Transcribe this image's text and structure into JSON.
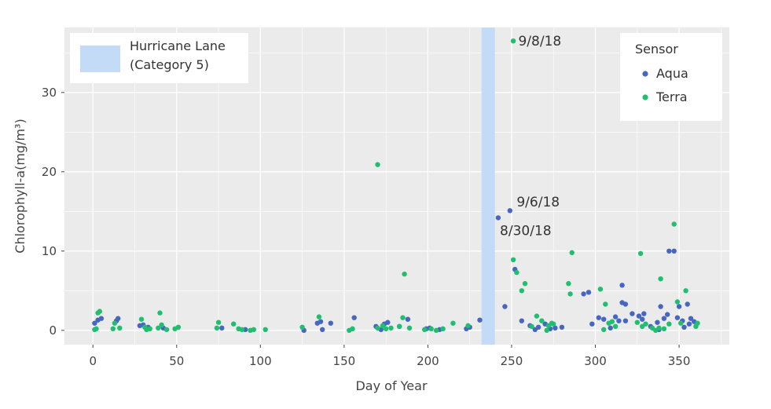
{
  "chart_data": {
    "type": "scatter",
    "xlabel": "Day of Year",
    "ylabel": "Chlorophyll-a(mg/m³)",
    "xlim": [
      -17,
      380
    ],
    "ylim": [
      -1.8,
      38.2
    ],
    "xticks": [
      0,
      50,
      100,
      150,
      200,
      250,
      300,
      350
    ],
    "yticks": [
      0,
      10,
      20,
      30
    ],
    "grid": true,
    "hurricane": {
      "label_line1": "Hurricane Lane",
      "label_line2": "(Category 5)",
      "x_start": 232,
      "x_end": 240,
      "color": "#c3dbf6"
    },
    "legend": {
      "title": "Sensor",
      "placement": "top-right"
    },
    "series": [
      {
        "name": "Aqua",
        "color": "#4766c0",
        "points": [
          [
            1,
            0.9
          ],
          [
            3,
            1.3
          ],
          [
            5,
            1.5
          ],
          [
            14,
            1.2
          ],
          [
            15,
            1.5
          ],
          [
            28,
            0.6
          ],
          [
            30,
            0.7
          ],
          [
            33,
            0.4
          ],
          [
            42,
            0.3
          ],
          [
            77,
            0.3
          ],
          [
            91,
            0.1
          ],
          [
            126,
            0.0
          ],
          [
            134,
            0.9
          ],
          [
            136,
            1.1
          ],
          [
            137,
            0.1
          ],
          [
            142,
            0.9
          ],
          [
            156,
            1.6
          ],
          [
            169,
            0.5
          ],
          [
            172,
            0.1
          ],
          [
            174,
            0.8
          ],
          [
            176,
            1.0
          ],
          [
            183,
            0.5
          ],
          [
            188,
            1.4
          ],
          [
            199,
            0.2
          ],
          [
            201,
            0.3
          ],
          [
            207,
            0.1
          ],
          [
            223,
            0.2
          ],
          [
            225,
            0.4
          ],
          [
            231,
            1.3
          ],
          [
            242,
            14.2
          ],
          [
            246,
            3.0
          ],
          [
            249,
            15.1
          ],
          [
            252,
            7.7
          ],
          [
            256,
            1.2
          ],
          [
            261,
            0.6
          ],
          [
            264,
            0.1
          ],
          [
            266,
            0.4
          ],
          [
            270,
            0.8
          ],
          [
            273,
            0.2
          ],
          [
            276,
            0.3
          ],
          [
            280,
            0.4
          ],
          [
            293,
            4.6
          ],
          [
            296,
            4.8
          ],
          [
            298,
            0.8
          ],
          [
            302,
            1.6
          ],
          [
            305,
            1.4
          ],
          [
            309,
            0.3
          ],
          [
            312,
            1.7
          ],
          [
            314,
            1.2
          ],
          [
            316,
            5.7
          ],
          [
            316,
            3.5
          ],
          [
            318,
            3.3
          ],
          [
            318,
            1.2
          ],
          [
            322,
            2.1
          ],
          [
            326,
            1.8
          ],
          [
            328,
            1.4
          ],
          [
            329,
            2.1
          ],
          [
            333,
            0.5
          ],
          [
            337,
            1.0
          ],
          [
            338,
            0.1
          ],
          [
            339,
            3.0
          ],
          [
            341,
            1.5
          ],
          [
            343,
            2.0
          ],
          [
            344,
            10.0
          ],
          [
            347,
            10.0
          ],
          [
            349,
            1.6
          ],
          [
            350,
            3.0
          ],
          [
            352,
            1.2
          ],
          [
            353,
            0.4
          ],
          [
            355,
            3.3
          ],
          [
            356,
            0.8
          ],
          [
            357,
            1.5
          ],
          [
            359,
            1.1
          ]
        ]
      },
      {
        "name": "Terra",
        "color": "#1fbf6f",
        "points": [
          [
            1,
            0.1
          ],
          [
            2,
            0.2
          ],
          [
            3,
            2.2
          ],
          [
            4,
            2.4
          ],
          [
            12,
            0.2
          ],
          [
            13,
            0.9
          ],
          [
            16,
            0.3
          ],
          [
            29,
            1.4
          ],
          [
            31,
            0.4
          ],
          [
            32,
            0.1
          ],
          [
            34,
            0.2
          ],
          [
            39,
            0.3
          ],
          [
            40,
            2.2
          ],
          [
            41,
            0.7
          ],
          [
            44,
            0.1
          ],
          [
            49,
            0.2
          ],
          [
            51,
            0.4
          ],
          [
            74,
            0.3
          ],
          [
            75,
            1.0
          ],
          [
            84,
            0.8
          ],
          [
            87,
            0.2
          ],
          [
            89,
            0.1
          ],
          [
            94,
            0.0
          ],
          [
            96,
            0.1
          ],
          [
            103,
            0.1
          ],
          [
            125,
            0.4
          ],
          [
            135,
            1.7
          ],
          [
            153,
            0.0
          ],
          [
            155,
            0.2
          ],
          [
            170,
            0.3
          ],
          [
            170,
            20.9
          ],
          [
            173,
            0.6
          ],
          [
            175,
            0.2
          ],
          [
            178,
            0.3
          ],
          [
            183,
            0.5
          ],
          [
            185,
            1.6
          ],
          [
            186,
            7.1
          ],
          [
            189,
            0.3
          ],
          [
            198,
            0.1
          ],
          [
            202,
            0.2
          ],
          [
            205,
            0.0
          ],
          [
            209,
            0.2
          ],
          [
            215,
            0.9
          ],
          [
            224,
            0.6
          ],
          [
            251,
            36.5
          ],
          [
            251,
            8.9
          ],
          [
            253,
            7.3
          ],
          [
            256,
            5.0
          ],
          [
            258,
            5.9
          ],
          [
            262,
            0.5
          ],
          [
            265,
            1.8
          ],
          [
            268,
            1.2
          ],
          [
            271,
            0.0
          ],
          [
            272,
            0.6
          ],
          [
            274,
            0.9
          ],
          [
            275,
            0.8
          ],
          [
            284,
            5.9
          ],
          [
            285,
            4.6
          ],
          [
            286,
            9.8
          ],
          [
            303,
            5.2
          ],
          [
            305,
            0.1
          ],
          [
            306,
            3.3
          ],
          [
            308,
            0.9
          ],
          [
            310,
            1.1
          ],
          [
            312,
            0.5
          ],
          [
            325,
            1.0
          ],
          [
            327,
            9.7
          ],
          [
            328,
            0.5
          ],
          [
            330,
            0.8
          ],
          [
            334,
            0.3
          ],
          [
            336,
            0.0
          ],
          [
            338,
            0.3
          ],
          [
            339,
            6.5
          ],
          [
            341,
            0.2
          ],
          [
            344,
            0.8
          ],
          [
            347,
            13.4
          ],
          [
            349,
            3.6
          ],
          [
            351,
            0.9
          ],
          [
            354,
            5.0
          ],
          [
            360,
            0.5
          ],
          [
            361,
            0.9
          ]
        ]
      }
    ],
    "annotations": [
      {
        "text": "9/8/18",
        "x": 254,
        "y": 36.5
      },
      {
        "text": "9/6/18",
        "x": 253,
        "y": 16.2
      },
      {
        "text": "8/30/18",
        "x": 243,
        "y": 12.6
      }
    ]
  }
}
